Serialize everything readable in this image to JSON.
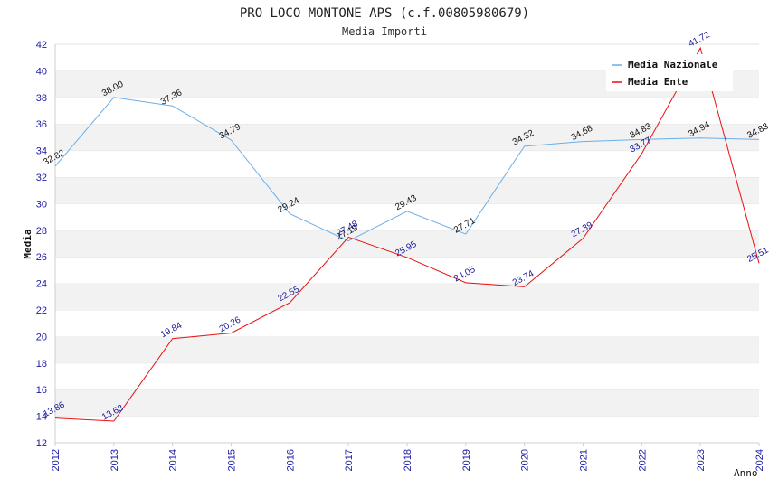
{
  "chart_data": {
    "type": "line",
    "title": "PRO LOCO MONTONE APS (c.f.00805980679)",
    "subtitle": "Media Importi",
    "xlabel": "Anno",
    "ylabel": "Media",
    "ylim": [
      12,
      42
    ],
    "yticks": [
      12,
      14,
      16,
      18,
      20,
      22,
      24,
      26,
      28,
      30,
      32,
      34,
      36,
      38,
      40,
      42
    ],
    "grid": "horizontal alternating bands",
    "legend_position": "top-right",
    "x": [
      "2012",
      "2013",
      "2014",
      "2015",
      "2016",
      "2017",
      "2018",
      "2019",
      "2020",
      "2021",
      "2022",
      "2023",
      "2024"
    ],
    "series": [
      {
        "name": "Media Nazionale",
        "color": "#6aaee8",
        "values": [
          32.82,
          38.0,
          37.36,
          34.79,
          29.24,
          27.19,
          29.43,
          27.71,
          34.32,
          34.68,
          34.83,
          34.94,
          34.83
        ],
        "labels": [
          "32.82",
          "38.00",
          "37.36",
          "34.79",
          "29.24",
          "27.19",
          "29.43",
          "27.71",
          "34.32",
          "34.68",
          "34.83",
          "34.94",
          "34.83"
        ]
      },
      {
        "name": "Media Ente",
        "color": "#e81010",
        "values": [
          13.86,
          13.63,
          19.84,
          20.26,
          22.55,
          27.48,
          25.95,
          24.05,
          23.74,
          27.39,
          33.77,
          41.72,
          25.51
        ],
        "labels": [
          "13.86",
          "13.63",
          "19.84",
          "20.26",
          "22.55",
          "27.48",
          "25.95",
          "24.05",
          "23.74",
          "27.39",
          "33.77",
          "41.72",
          "25.51"
        ]
      }
    ]
  }
}
